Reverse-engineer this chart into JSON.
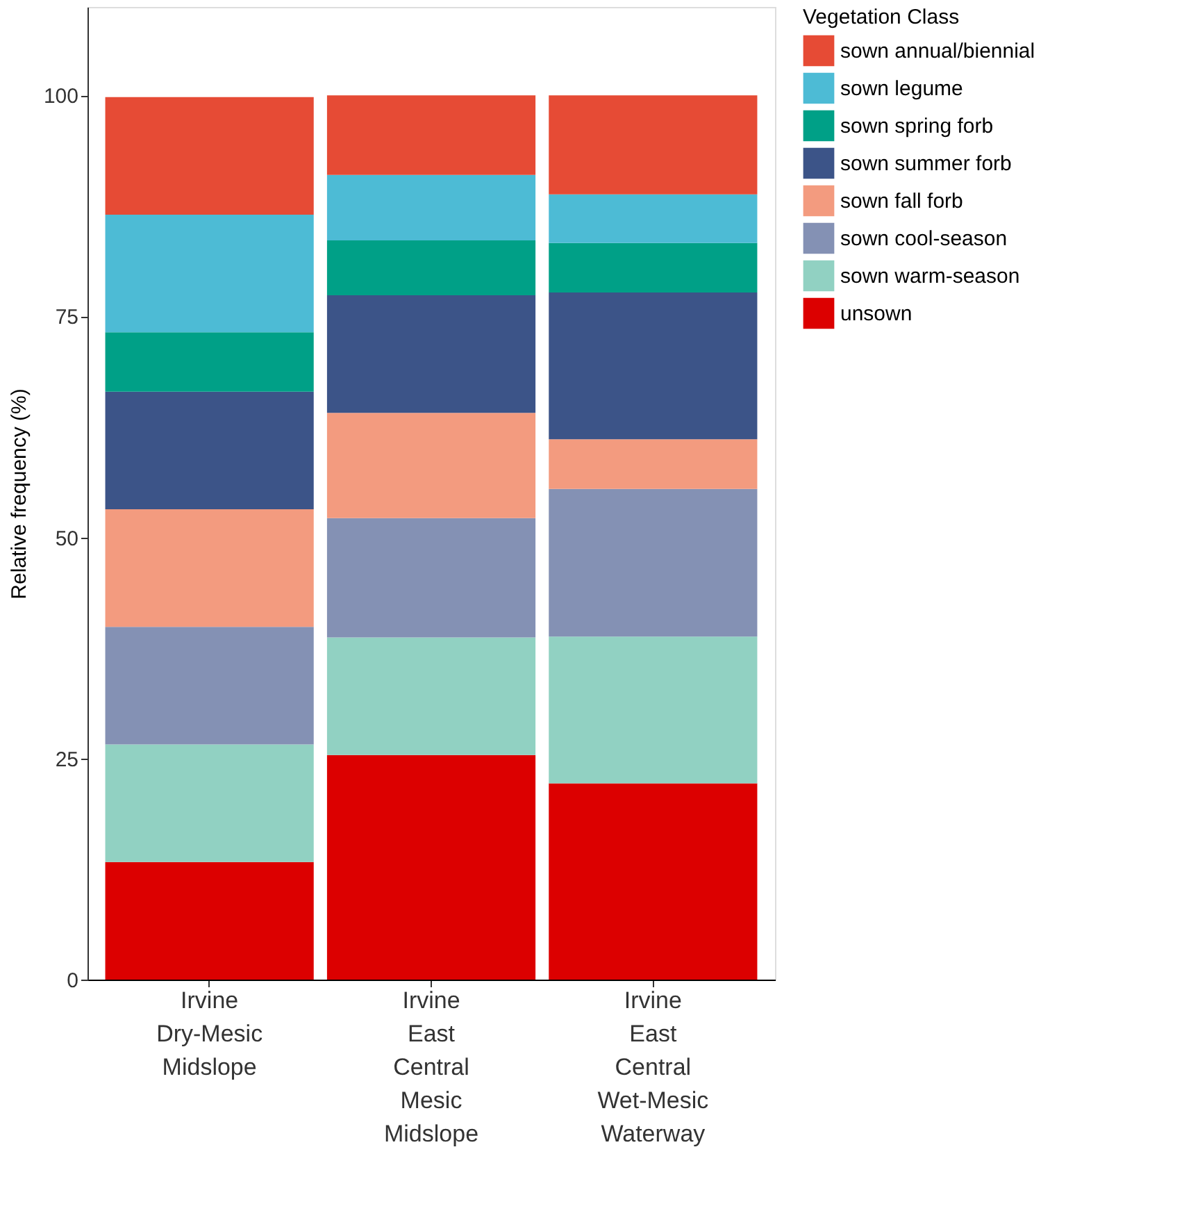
{
  "chart_data": {
    "type": "bar",
    "stacked": true,
    "ylabel": "Relative frequency (%)",
    "legend_title": "Vegetation Class",
    "legend": "right",
    "categories": [
      "Irvine Dry-Mesic Midslope",
      "Irvine East Central Mesic Midslope",
      "Irvine East Central Wet-Mesic Waterway"
    ],
    "ylim": [
      0,
      110
    ],
    "yticks": [
      0,
      25,
      50,
      75,
      100
    ],
    "grid": false,
    "series": [
      {
        "name": "unsown",
        "color": "#dc0000",
        "values": [
          13.3,
          25.4,
          22.2
        ]
      },
      {
        "name": "sown warm-season",
        "color": "#91d1c2",
        "values": [
          13.3,
          13.3,
          16.6
        ]
      },
      {
        "name": "sown cool-season",
        "color": "#8491b4",
        "values": [
          13.3,
          13.5,
          16.7
        ]
      },
      {
        "name": "sown fall forb",
        "color": "#f39b7f",
        "values": [
          13.3,
          11.9,
          5.6
        ]
      },
      {
        "name": "sown summer forb",
        "color": "#3c5488",
        "values": [
          13.3,
          13.3,
          16.6
        ]
      },
      {
        "name": "sown spring forb",
        "color": "#00a087",
        "values": [
          6.7,
          6.2,
          5.6
        ]
      },
      {
        "name": "sown legume",
        "color": "#4dbbd5",
        "values": [
          13.3,
          7.4,
          5.5
        ]
      },
      {
        "name": "sown annual/biennial",
        "color": "#e64b35",
        "values": [
          13.3,
          9.0,
          11.2
        ]
      }
    ]
  }
}
